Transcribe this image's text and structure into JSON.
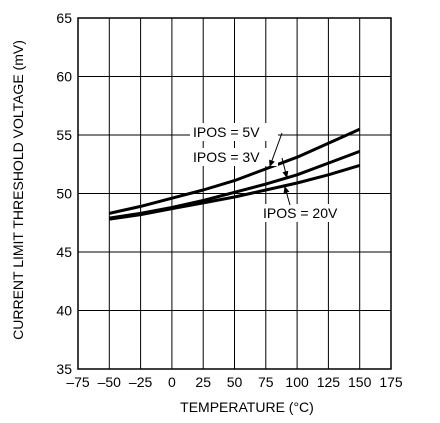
{
  "chart_data": {
    "type": "line",
    "title": "",
    "xlabel": "TEMPERATURE (°C)",
    "ylabel": "CURRENT LIMIT THRESHOLD VOLTAGE (mV)",
    "xlim": [
      -75,
      175
    ],
    "ylim": [
      35,
      65
    ],
    "xticks": [
      -75,
      -50,
      -25,
      0,
      25,
      50,
      75,
      100,
      125,
      150,
      175
    ],
    "xtick_labels": [
      "–75",
      "–50",
      "–25",
      "0",
      "25",
      "50",
      "75",
      "100",
      "125",
      "150",
      "175"
    ],
    "yticks": [
      35,
      40,
      45,
      50,
      55,
      60,
      65
    ],
    "ytick_labels": [
      "35",
      "40",
      "45",
      "50",
      "55",
      "60",
      "65"
    ],
    "grid": true,
    "legend": "none",
    "series": [
      {
        "name": "IPOS = 5V",
        "x": [
          -50,
          -25,
          0,
          25,
          50,
          75,
          100,
          125,
          150
        ],
        "y": [
          48.3,
          48.9,
          49.6,
          50.3,
          51.1,
          52.1,
          53.1,
          54.3,
          55.5
        ]
      },
      {
        "name": "IPOS = 3V",
        "x": [
          -50,
          -25,
          0,
          25,
          50,
          75,
          100,
          125,
          150
        ],
        "y": [
          47.9,
          48.3,
          48.8,
          49.4,
          50.1,
          50.8,
          51.6,
          52.6,
          53.6
        ]
      },
      {
        "name": "IPOS = 20V",
        "x": [
          -50,
          -25,
          0,
          25,
          50,
          75,
          100,
          125,
          150
        ],
        "y": [
          47.8,
          48.2,
          48.7,
          49.2,
          49.7,
          50.3,
          50.9,
          51.6,
          52.4
        ]
      }
    ]
  }
}
